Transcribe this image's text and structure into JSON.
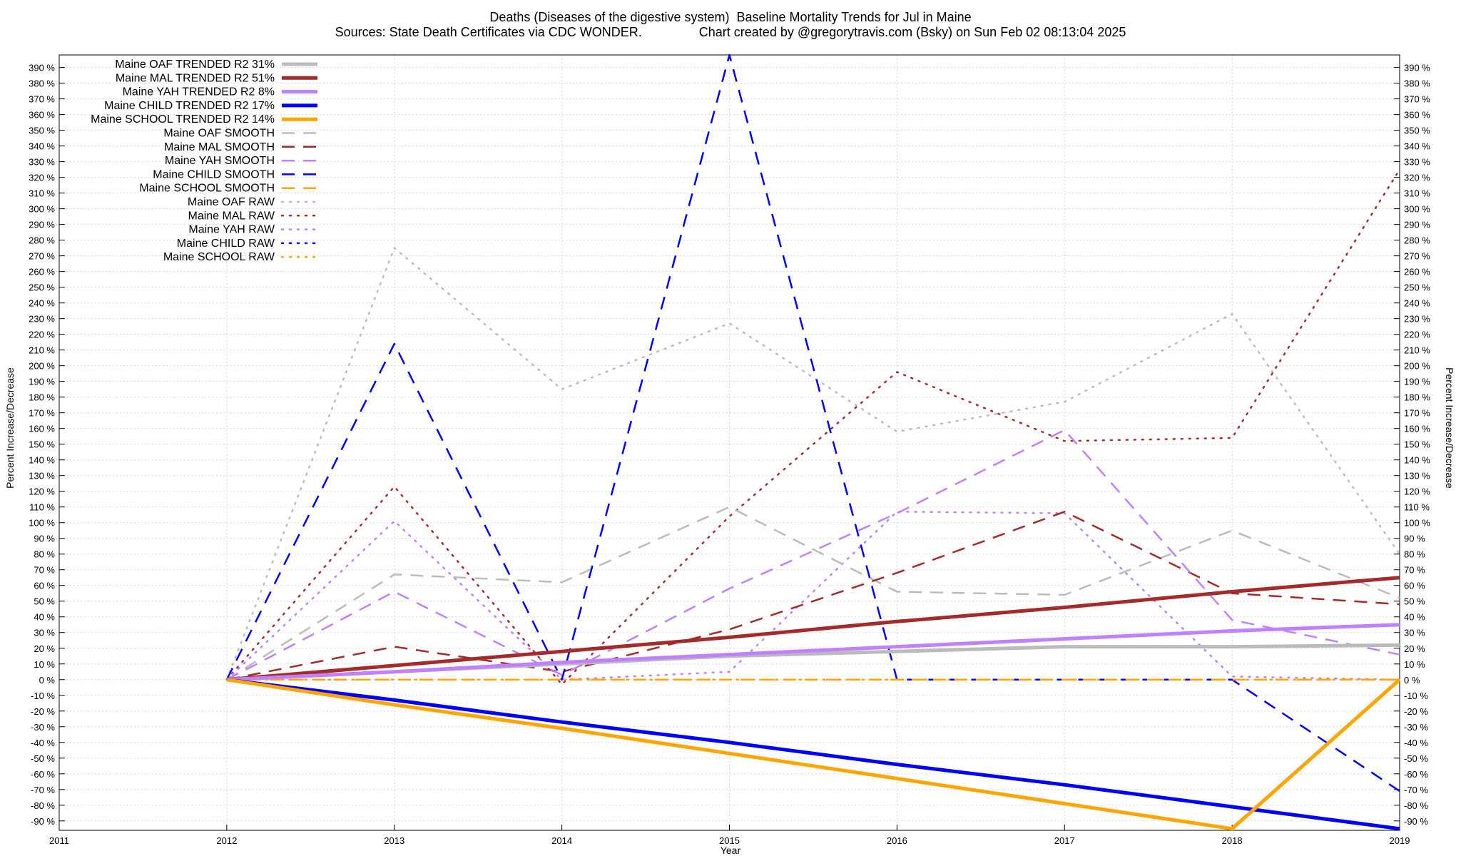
{
  "chart_data": {
    "type": "line",
    "title_line1": "Deaths (Diseases of the digestive system)  Baseline Mortality Trends for Jul in Maine",
    "title_line2": "Sources: State Death Certificates via CDC WONDER.                Chart created by @gregorytravis.com (Bsky) on Sun Feb 02 08:13:04 2025",
    "xlabel": "Year",
    "ylabel": "Percent Increase/Decrease",
    "xlim": [
      2011,
      2019
    ],
    "ylim": [
      -96,
      398
    ],
    "x_ticks": [
      2011,
      2012,
      2013,
      2014,
      2015,
      2016,
      2017,
      2018,
      2019
    ],
    "y_ticks": [
      -90,
      -80,
      -70,
      -60,
      -50,
      -40,
      -30,
      -20,
      -10,
      0,
      10,
      20,
      30,
      40,
      50,
      60,
      70,
      80,
      90,
      100,
      110,
      120,
      130,
      140,
      150,
      160,
      170,
      180,
      190,
      200,
      210,
      220,
      230,
      240,
      250,
      260,
      270,
      280,
      290,
      300,
      310,
      320,
      330,
      340,
      350,
      360,
      370,
      380,
      390
    ],
    "y_tick_suffix": " %",
    "grid": true,
    "legend_position": "top-left",
    "x": [
      2012,
      2013,
      2014,
      2015,
      2016,
      2017,
      2018,
      2019
    ],
    "series": [
      {
        "name": "Maine OAF TRENDED R2  31%",
        "color": "#bbbbbb",
        "style": "solid",
        "values": [
          0,
          5,
          10,
          15,
          18,
          21,
          21,
          22
        ]
      },
      {
        "name": "Maine MAL TRENDED R2  51%",
        "color": "#a52a2a",
        "style": "solid",
        "values": [
          0,
          9,
          18,
          27,
          37,
          46,
          56,
          65
        ]
      },
      {
        "name": "Maine YAH TRENDED R2   8%",
        "color": "#c080ff",
        "style": "solid",
        "values": [
          0,
          5,
          11,
          16,
          21,
          26,
          31,
          35
        ]
      },
      {
        "name": "Maine CHILD TRENDED R2  17%",
        "color": "#0000ff",
        "style": "solid",
        "values": [
          0,
          -13,
          -27,
          -40,
          -54,
          -67,
          -81,
          -95
        ]
      },
      {
        "name": "Maine SCHOOL TRENDED R2  14%",
        "color": "#ffa500",
        "style": "solid",
        "values": [
          0,
          -16,
          -31,
          -47,
          -63,
          -79,
          -95,
          0
        ]
      },
      {
        "name": "Maine OAF SMOOTH",
        "color": "#bbbbbb",
        "style": "dashed",
        "values": [
          0,
          67,
          62,
          110,
          56,
          54,
          95,
          52
        ]
      },
      {
        "name": "Maine MAL SMOOTH",
        "color": "#a52a2a",
        "style": "dashed",
        "values": [
          0,
          21,
          5,
          32,
          68,
          107,
          55,
          48
        ]
      },
      {
        "name": "Maine YAH SMOOTH",
        "color": "#c080ff",
        "style": "dashed",
        "values": [
          0,
          56,
          3,
          58,
          106,
          159,
          38,
          16
        ]
      },
      {
        "name": "Maine CHILD SMOOTH",
        "color": "#0000ff",
        "style": "dashed",
        "values": [
          0,
          214,
          0,
          398,
          0,
          0,
          0,
          -71
        ]
      },
      {
        "name": "Maine SCHOOL SMOOTH",
        "color": "#ffa500",
        "style": "dashed",
        "values": [
          0,
          0,
          0,
          0,
          0,
          0,
          0,
          0
        ]
      },
      {
        "name": "Maine OAF RAW",
        "color": "#bbbbbb",
        "style": "dotted",
        "values": [
          0,
          275,
          185,
          227,
          158,
          177,
          233,
          80
        ]
      },
      {
        "name": "Maine MAL RAW",
        "color": "#a52a2a",
        "style": "dotted",
        "values": [
          0,
          123,
          -3,
          104,
          196,
          152,
          154,
          325
        ]
      },
      {
        "name": "Maine YAH RAW",
        "color": "#c080ff",
        "style": "dotted",
        "values": [
          0,
          101,
          0,
          5,
          107,
          106,
          2,
          0
        ]
      },
      {
        "name": "Maine CHILD RAW",
        "color": "#0000ff",
        "style": "dotted",
        "values": [
          0,
          0,
          0,
          0,
          0,
          0,
          0,
          0
        ]
      },
      {
        "name": "Maine SCHOOL RAW",
        "color": "#ffa500",
        "style": "dotted",
        "values": [
          0,
          0,
          0,
          0,
          0,
          0,
          0,
          0
        ]
      }
    ]
  }
}
